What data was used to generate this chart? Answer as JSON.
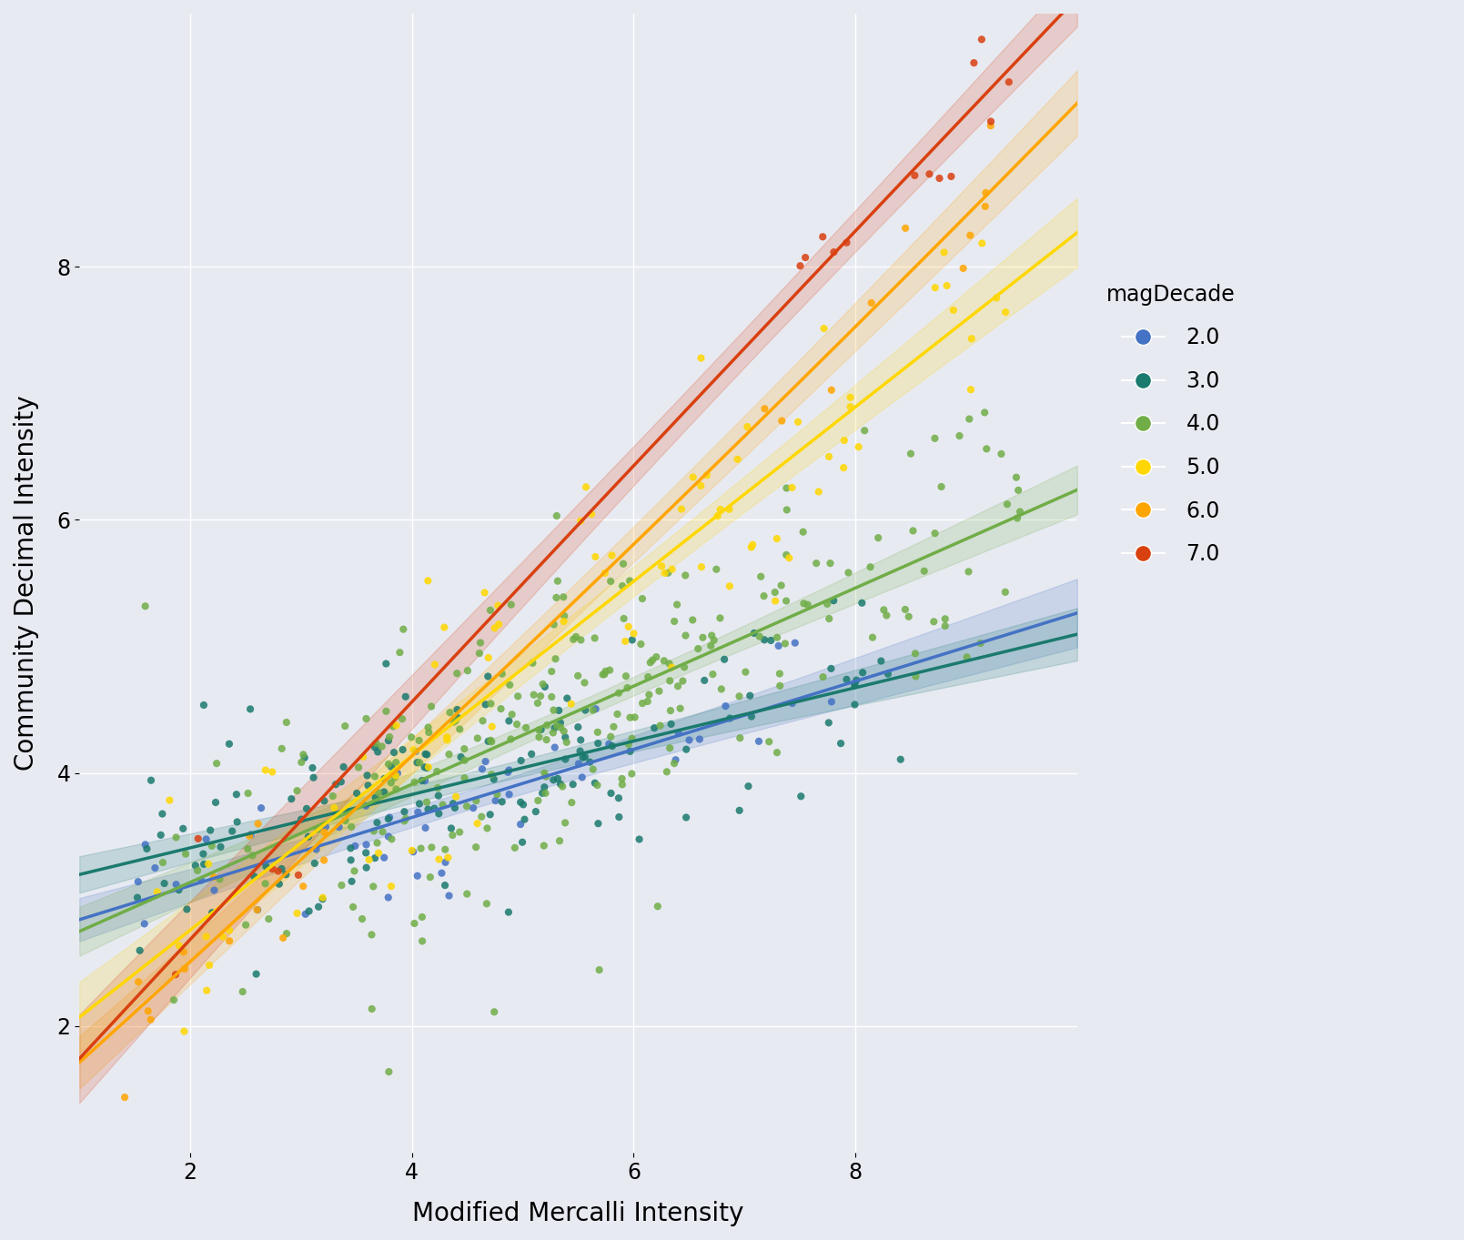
{
  "title": "",
  "xlabel": "Modified Mercalli Intensity",
  "ylabel": "Community Decimal Intensity",
  "background_color": "#e8eaf2",
  "fig_background": "#e8eaf2",
  "xlim": [
    1,
    10
  ],
  "ylim": [
    1,
    10
  ],
  "xticks": [
    2,
    4,
    6,
    8
  ],
  "yticks": [
    2,
    4,
    6,
    8
  ],
  "grid_color": "white",
  "legend_title": "magDecade",
  "categories": [
    "2.0",
    "3.0",
    "4.0",
    "5.0",
    "6.0",
    "7.0"
  ],
  "colors": {
    "2.0": "#4472C4",
    "3.0": "#1a7a6e",
    "4.0": "#70AD47",
    "5.0": "#FFD700",
    "6.0": "#FFA500",
    "7.0": "#D94010"
  },
  "dot_size": 35,
  "dot_alpha": 0.85,
  "line_width": 2.5,
  "ci_alpha": 0.18
}
